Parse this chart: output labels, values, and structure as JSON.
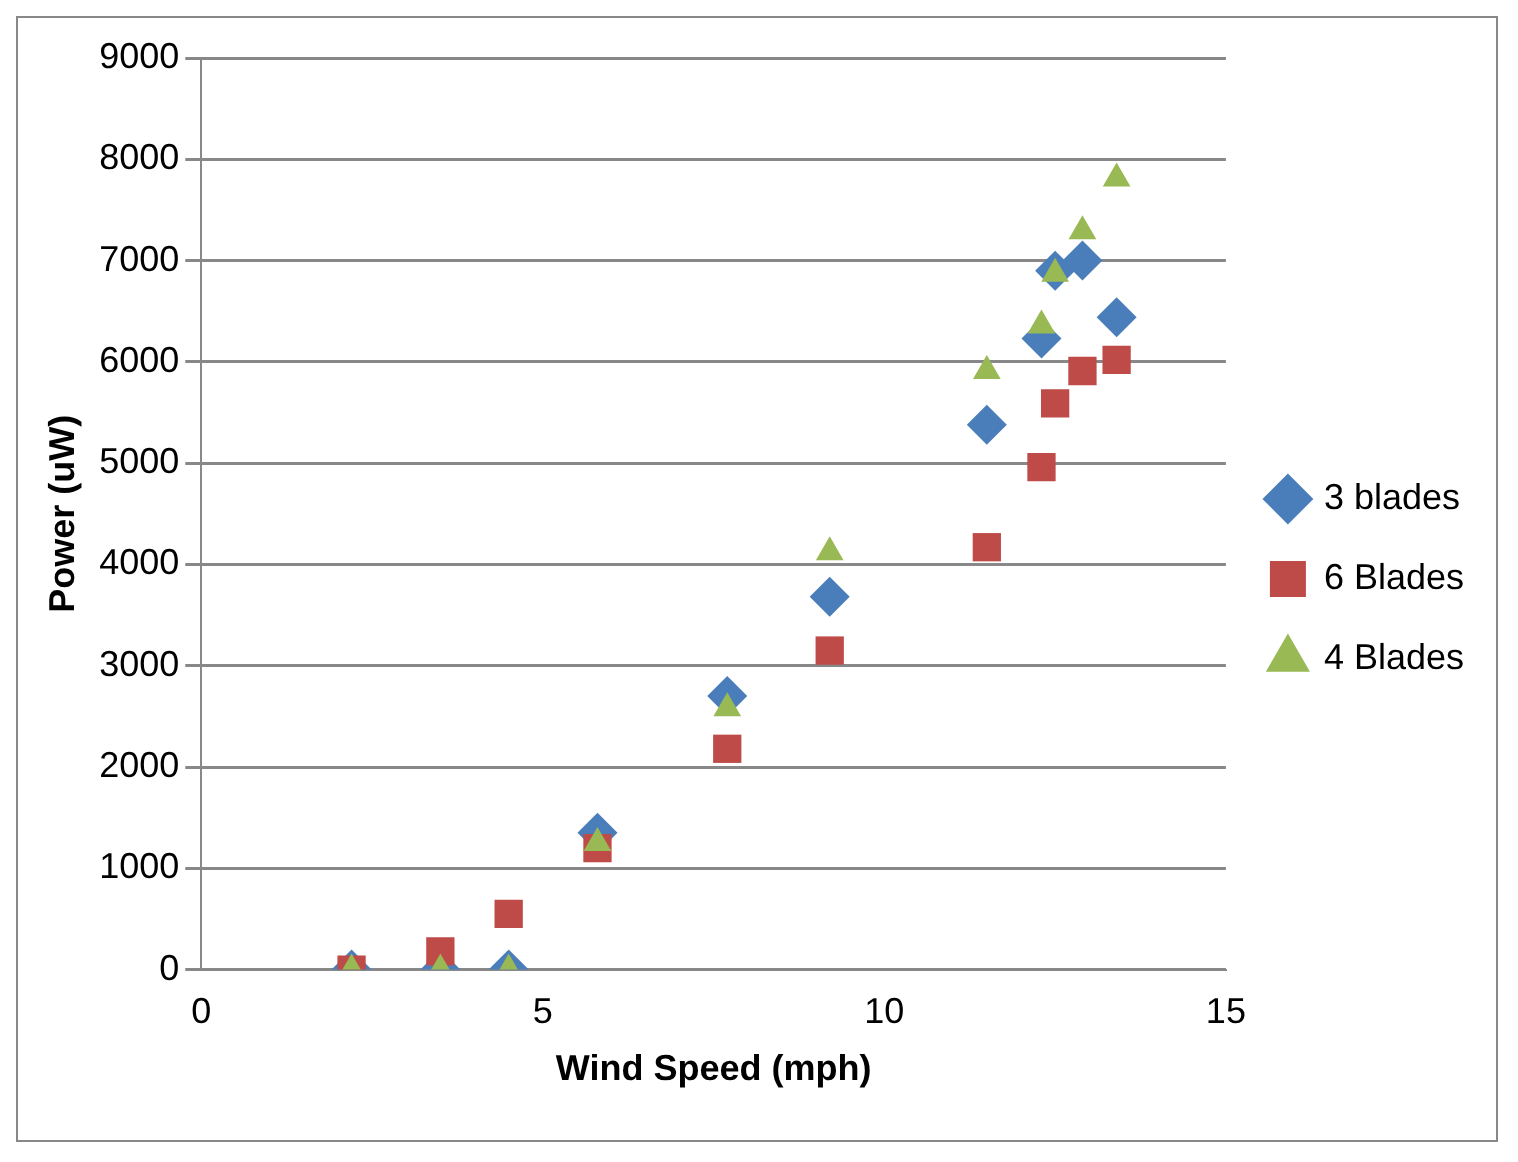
{
  "chart_data": {
    "type": "scatter",
    "xlabel": "Wind Speed (mph)",
    "ylabel": "Power (uW)",
    "xlim": [
      0,
      15
    ],
    "xticks": [
      0,
      5,
      10,
      15
    ],
    "ylim": [
      0,
      9000
    ],
    "yticks": [
      0,
      1000,
      2000,
      3000,
      4000,
      5000,
      6000,
      7000,
      8000,
      9000
    ],
    "grid": "y",
    "legend": "right",
    "x": [
      2.2,
      3.5,
      4.5,
      5.8,
      7.7,
      9.2,
      11.5,
      12.3,
      12.5,
      12.9,
      13.4
    ],
    "series": [
      {
        "name": "3 blades",
        "color": "#4a7ebb",
        "marker": "diamond",
        "values": [
          0,
          0,
          0,
          1350,
          2700,
          3680,
          5380,
          6230,
          6900,
          7000,
          6440
        ]
      },
      {
        "name": "6 Blades",
        "color": "#be4b48",
        "marker": "square",
        "values": [
          0,
          180,
          550,
          1200,
          2180,
          3150,
          4170,
          4960,
          5590,
          5910,
          6020
        ]
      },
      {
        "name": "4 Blades",
        "color": "#98b954",
        "marker": "triangle",
        "values": [
          0,
          0,
          0,
          1250,
          2580,
          4120,
          5910,
          6360,
          6870,
          7290,
          7810
        ]
      }
    ]
  }
}
